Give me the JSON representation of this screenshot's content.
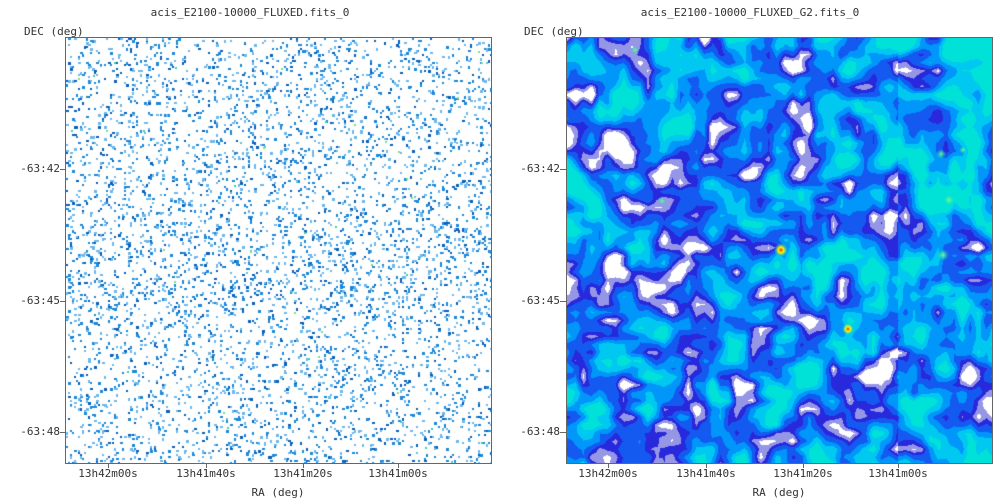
{
  "panels": [
    {
      "title": "acis_E2100-10000_FLUXED.fits_0",
      "ylabel": "DEC (deg)",
      "xlabel": "RA (deg)",
      "yticks": [
        "-63:42",
        "-63:45",
        "-63:48"
      ],
      "xticks": [
        "13h42m00s",
        "13h41m40s",
        "13h41m20s",
        "13h41m00s"
      ],
      "style": "sparse"
    },
    {
      "title": "acis_E2100-10000_FLUXED_G2.fits_0",
      "ylabel": "DEC (deg)",
      "xlabel": "RA (deg)",
      "yticks": [
        "-63:42",
        "-63:45",
        "-63:48"
      ],
      "xticks": [
        "13h42m00s",
        "13h41m40s",
        "13h41m20s",
        "13h41m00s"
      ],
      "style": "smoothed"
    }
  ],
  "colors": {
    "background": "#ffffff",
    "axis": "#666666",
    "pixel_light": "#6fb7ea",
    "pixel_mid": "#1e88d8",
    "pixel_dark": "#0b5fb8",
    "smooth_low": "#1a1aff",
    "smooth_mid": "#00a6ff",
    "smooth_high": "#00e0e0",
    "hotspot": "#ffff00",
    "hotspot_core": "#ff2200",
    "void": "#ffffff",
    "edge": "#4b4bc8"
  }
}
